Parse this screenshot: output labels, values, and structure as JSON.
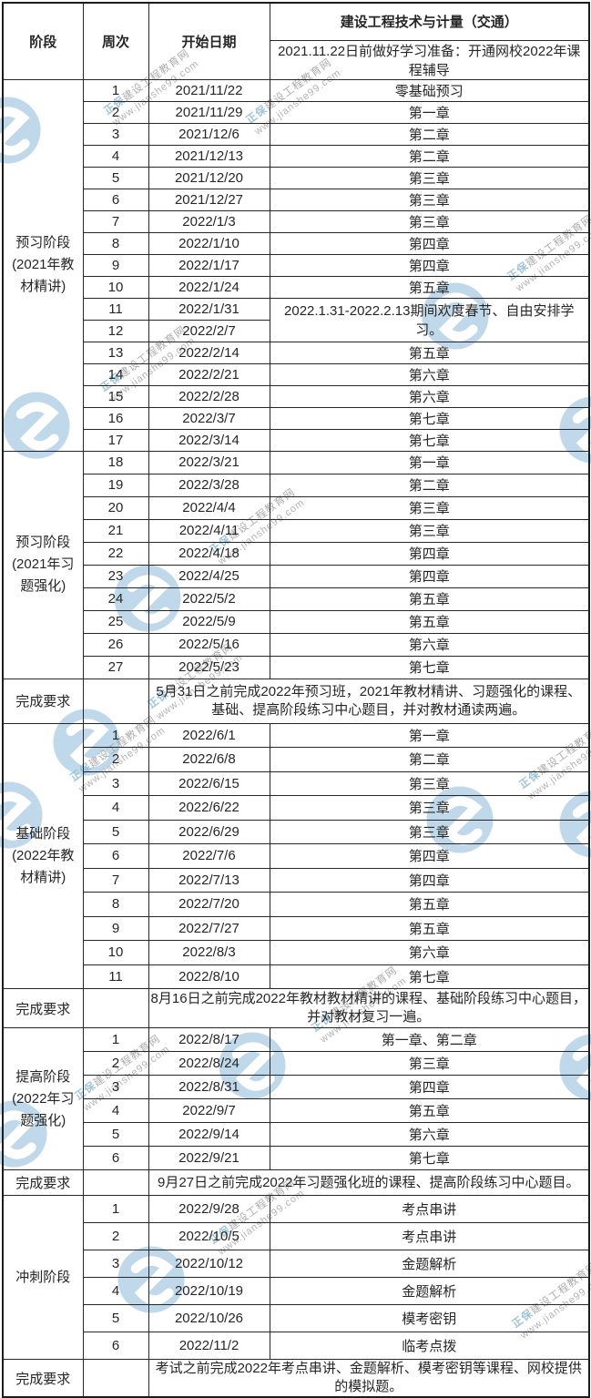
{
  "header": {
    "col_stage": "阶段",
    "col_week": "周次",
    "col_date": "开始日期",
    "course_title": "建设工程技术与计量（交通）",
    "prep_note": "2021.11.22日前做好学习准备：开通网校2022年课程辅导"
  },
  "sections": [
    {
      "type": "stage",
      "label": "预习阶段\n(2021年教材精讲)",
      "rows": [
        {
          "week": "1",
          "date": "2021/11/22",
          "content": "零基础预习"
        },
        {
          "week": "2",
          "date": "2021/11/29",
          "content": "第一章"
        },
        {
          "week": "3",
          "date": "2021/12/6",
          "content": "第二章"
        },
        {
          "week": "4",
          "date": "2021/12/13",
          "content": "第二章"
        },
        {
          "week": "5",
          "date": "2021/12/20",
          "content": "第三章"
        },
        {
          "week": "6",
          "date": "2021/12/27",
          "content": "第三章"
        },
        {
          "week": "7",
          "date": "2022/1/3",
          "content": "第三章"
        },
        {
          "week": "8",
          "date": "2022/1/10",
          "content": "第四章"
        },
        {
          "week": "9",
          "date": "2022/1/17",
          "content": "第四章"
        },
        {
          "week": "10",
          "date": "2022/1/24",
          "content": "第五章"
        },
        {
          "week": "11",
          "date": "2022/1/31",
          "content": "2022.1.31-2022.2.13期间欢度春节、自由安排学习。",
          "rowspan": 2,
          "holiday": true
        },
        {
          "week": "12",
          "date": "2022/2/7",
          "content": null
        },
        {
          "week": "13",
          "date": "2022/2/14",
          "content": "第五章"
        },
        {
          "week": "14",
          "date": "2022/2/21",
          "content": "第六章"
        },
        {
          "week": "15",
          "date": "2022/2/28",
          "content": "第六章"
        },
        {
          "week": "16",
          "date": "2022/3/7",
          "content": "第七章"
        },
        {
          "week": "17",
          "date": "2022/3/14",
          "content": "第七章"
        }
      ]
    },
    {
      "type": "stage",
      "label": "预习阶段\n(2021年习题强化)",
      "rows": [
        {
          "week": "18",
          "date": "2022/3/21",
          "content": "第一章"
        },
        {
          "week": "19",
          "date": "2022/3/28",
          "content": "第二章"
        },
        {
          "week": "20",
          "date": "2022/4/4",
          "content": "第三章"
        },
        {
          "week": "21",
          "date": "2022/4/11",
          "content": "第三章"
        },
        {
          "week": "22",
          "date": "2022/4/18",
          "content": "第四章"
        },
        {
          "week": "23",
          "date": "2022/4/25",
          "content": "第四章"
        },
        {
          "week": "24",
          "date": "2022/5/2",
          "content": "第五章"
        },
        {
          "week": "25",
          "date": "2022/5/9",
          "content": "第五章"
        },
        {
          "week": "26",
          "date": "2022/5/16",
          "content": "第六章"
        },
        {
          "week": "27",
          "date": "2022/5/23",
          "content": "第七章"
        }
      ]
    },
    {
      "type": "requirement",
      "label": "完成要求",
      "text": "5月31日之前完成2022年预习班，2021年教材精讲、习题强化的课程、基础、提高阶段练习中心题目，并对教材通读两遍。"
    },
    {
      "type": "stage",
      "label": "基础阶段\n(2022年教材精讲)",
      "rows": [
        {
          "week": "1",
          "date": "2022/6/1",
          "content": "第一章"
        },
        {
          "week": "2",
          "date": "2022/6/8",
          "content": "第二章"
        },
        {
          "week": "3",
          "date": "2022/6/15",
          "content": "第三章"
        },
        {
          "week": "4",
          "date": "2022/6/22",
          "content": "第三章"
        },
        {
          "week": "5",
          "date": "2022/6/29",
          "content": "第三章"
        },
        {
          "week": "6",
          "date": "2022/7/6",
          "content": "第四章"
        },
        {
          "week": "7",
          "date": "2022/7/13",
          "content": "第四章"
        },
        {
          "week": "8",
          "date": "2022/7/20",
          "content": "第五章"
        },
        {
          "week": "9",
          "date": "2022/7/27",
          "content": "第五章"
        },
        {
          "week": "10",
          "date": "2022/8/3",
          "content": "第六章"
        },
        {
          "week": "11",
          "date": "2022/8/10",
          "content": "第七章"
        }
      ]
    },
    {
      "type": "requirement",
      "label": "完成要求",
      "text": "8月16日之前完成2022年教材教材精讲的课程、基础阶段练习中心题目，并对教材复习一遍。"
    },
    {
      "type": "stage",
      "label": "提高阶段\n(2022年习题强化)",
      "rows": [
        {
          "week": "1",
          "date": "2022/8/17",
          "content": "第一章、第二章"
        },
        {
          "week": "2",
          "date": "2022/8/24",
          "content": "第三章"
        },
        {
          "week": "3",
          "date": "2022/8/31",
          "content": "第四章"
        },
        {
          "week": "4",
          "date": "2022/9/7",
          "content": "第五章"
        },
        {
          "week": "5",
          "date": "2022/9/14",
          "content": "第六章"
        },
        {
          "week": "6",
          "date": "2022/9/21",
          "content": "第七章"
        }
      ]
    },
    {
      "type": "requirement",
      "label": "完成要求",
      "text": "9月27日之前完成2022年习题强化班的课程、提高阶段练习中心题目。"
    },
    {
      "type": "stage",
      "label": "冲刺阶段",
      "rows": [
        {
          "week": "1",
          "date": "2022/9/28",
          "content": "考点串讲"
        },
        {
          "week": "2",
          "date": "2022/10/5",
          "content": "考点串讲"
        },
        {
          "week": "3",
          "date": "2022/10/12",
          "content": "金题解析"
        },
        {
          "week": "4",
          "date": "2022/10/19",
          "content": "金题解析"
        },
        {
          "week": "5",
          "date": "2022/10/26",
          "content": "模考密钥"
        },
        {
          "week": "6",
          "date": "2022/11/2",
          "content": "临考点拨"
        }
      ]
    },
    {
      "type": "requirement",
      "label": "完成要求",
      "text": "考试之前完成2022年考点串讲、金题解析、模考密钥等课程、网校提供的模拟题。"
    }
  ],
  "watermark": {
    "brand_prefix": "正保",
    "brand_rest": "建设工程教育网",
    "url": "www.jianshe99.com",
    "logo_color": "#b5d3e8",
    "text_color": "#a3a3a3"
  }
}
